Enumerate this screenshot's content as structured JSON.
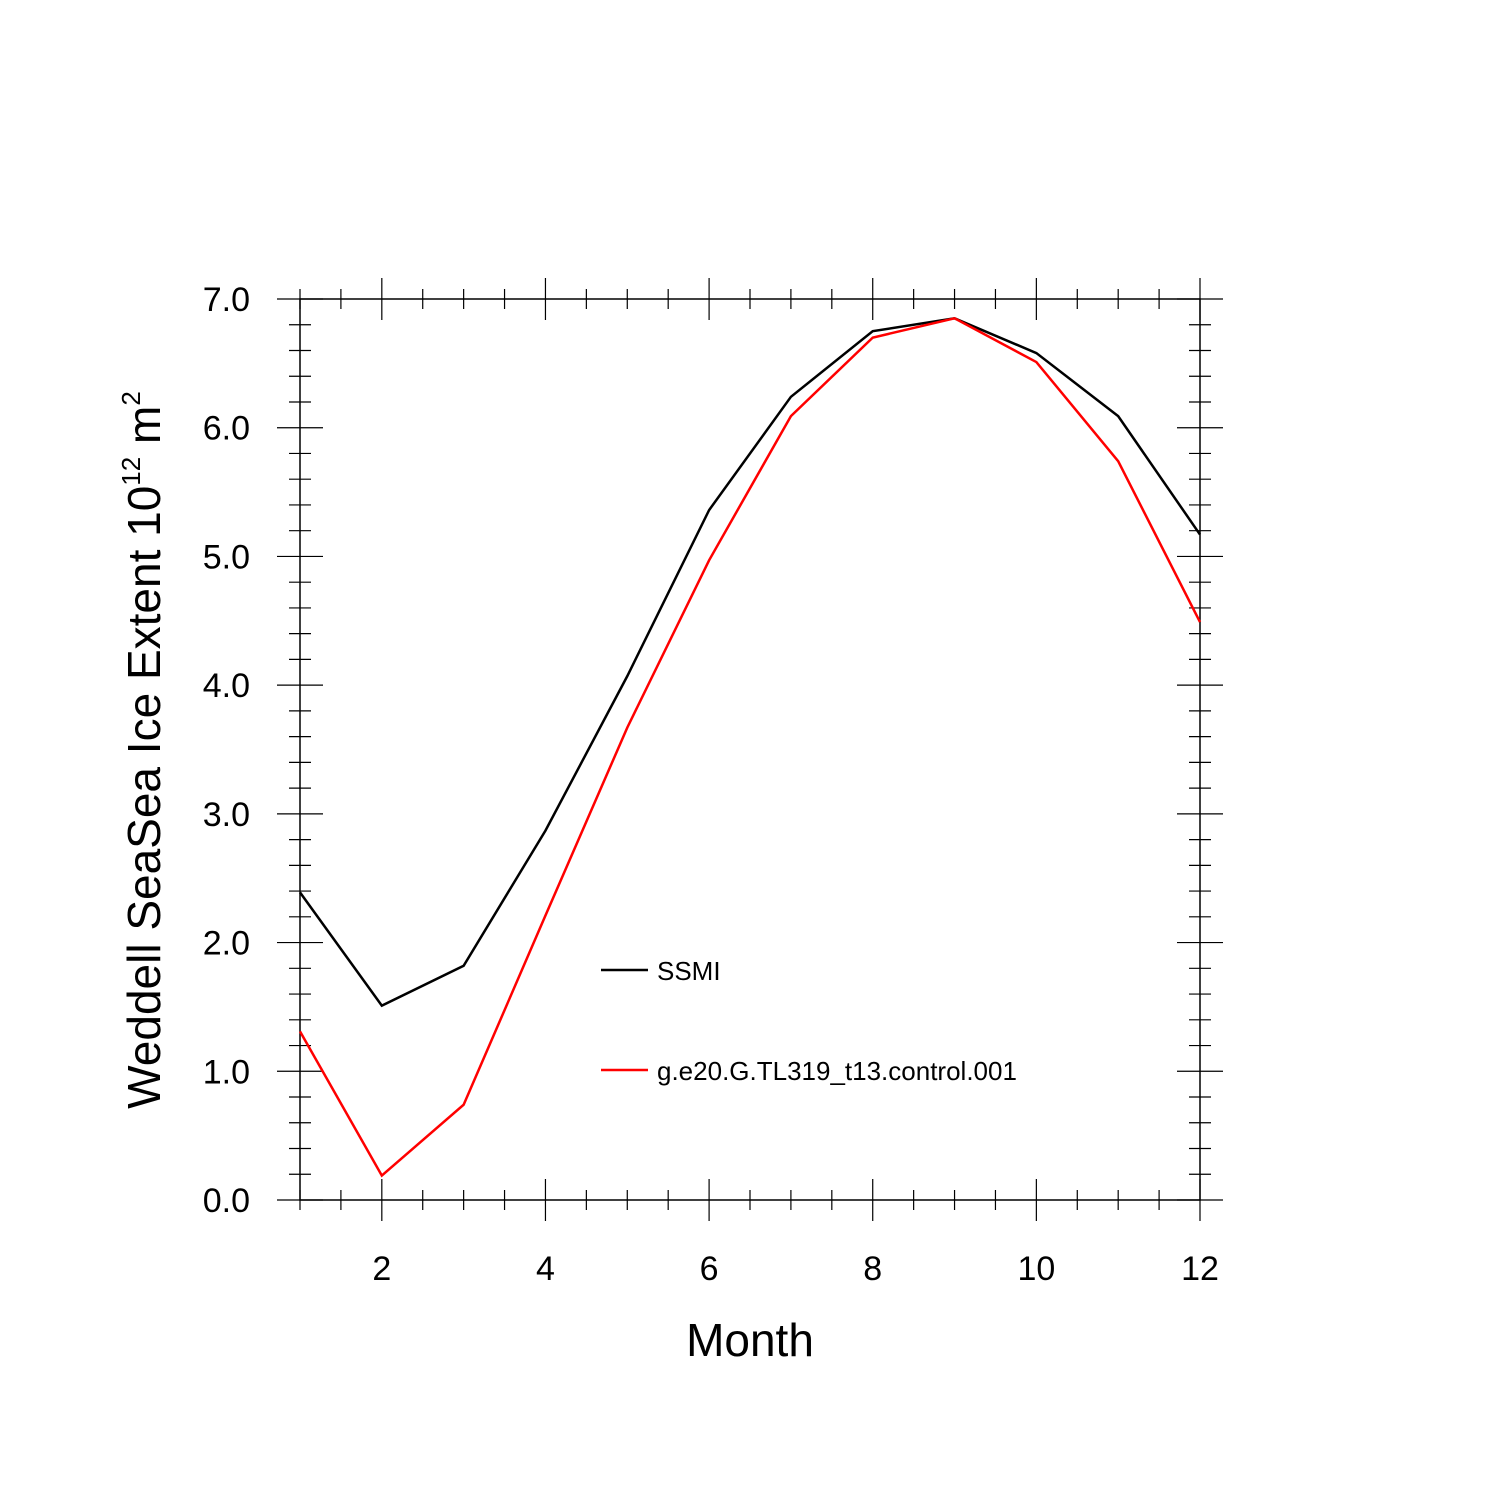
{
  "chart_data": {
    "type": "line",
    "title": "",
    "xlabel": "Month",
    "ylabel": "Weddell SeaSea Ice Extent 10",
    "ylabel_superscript": "12",
    "ylabel_unit": " m",
    "ylabel_unit_superscript": "2",
    "xlim": [
      1,
      12
    ],
    "ylim": [
      0,
      7
    ],
    "x_ticks": [
      2,
      4,
      6,
      8,
      10,
      12
    ],
    "x_tick_labels": [
      "2",
      "4",
      "6",
      "8",
      "10",
      "12"
    ],
    "y_ticks": [
      0,
      1,
      2,
      3,
      4,
      5,
      6,
      7
    ],
    "y_tick_labels": [
      "0.0",
      "1.0",
      "2.0",
      "3.0",
      "4.0",
      "5.0",
      "6.0",
      "7.0"
    ],
    "x": [
      1,
      2,
      3,
      4,
      5,
      6,
      7,
      8,
      9,
      10,
      11,
      12
    ],
    "series": [
      {
        "name": "SSMI",
        "color": "#000000",
        "values": [
          2.39,
          1.51,
          1.82,
          2.87,
          4.07,
          5.36,
          6.24,
          6.75,
          6.85,
          6.58,
          6.09,
          5.17
        ]
      },
      {
        "name": "g.e20.G.TL319_t13.control.001",
        "color": "#ff0000",
        "values": [
          1.31,
          0.19,
          0.74,
          2.21,
          3.67,
          4.97,
          6.09,
          6.7,
          6.85,
          6.51,
          5.74,
          4.49
        ]
      }
    ],
    "legend_position": "lower-center",
    "grid": false
  }
}
